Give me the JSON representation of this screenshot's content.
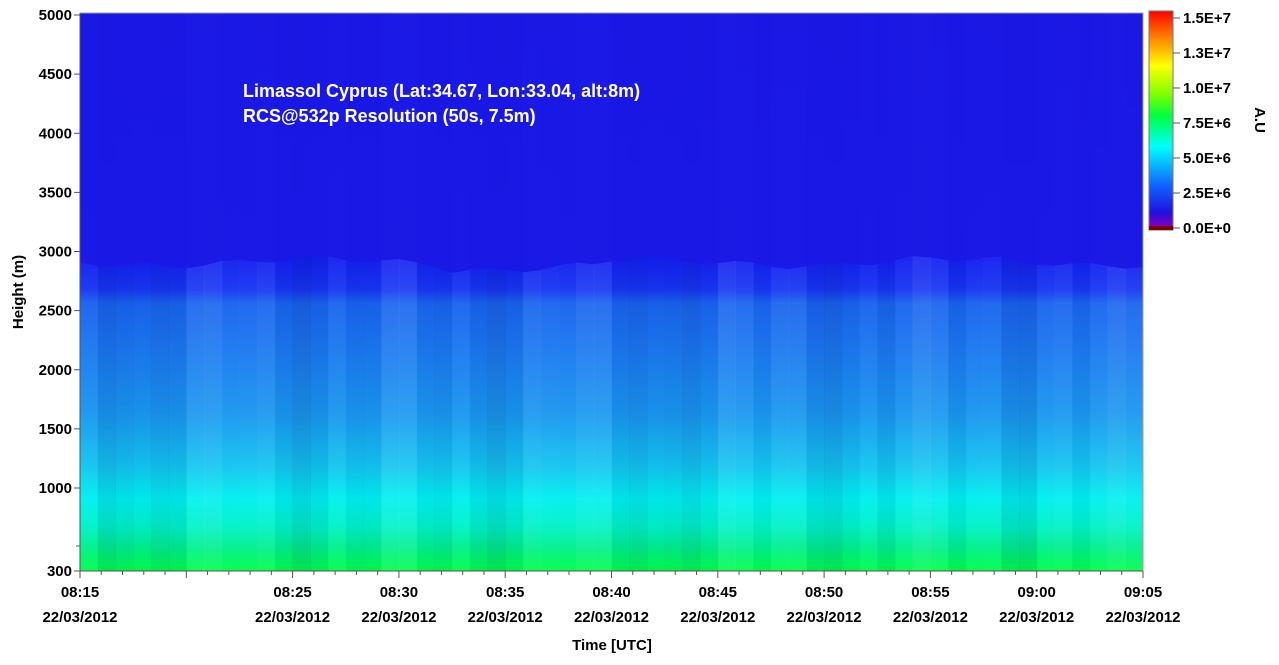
{
  "chart_data": {
    "type": "heatmap",
    "title": "",
    "annotations": [
      "Limassol Cyprus (Lat:34.67, Lon:33.04, alt:8m)",
      "RCS@532p Resolution (50s, 7.5m)"
    ],
    "xlabel": "Time [UTC]",
    "ylabel": "Height (m)",
    "x_date": "22/03/2012",
    "x_ticks": [
      "08:15",
      "08:25",
      "08:30",
      "08:35",
      "08:40",
      "08:45",
      "08:50",
      "08:55",
      "09:00",
      "09:05"
    ],
    "x_range": [
      "08:15",
      "09:05"
    ],
    "y_ticks": [
      300,
      1000,
      1500,
      2000,
      2500,
      3000,
      3500,
      4000,
      4500,
      5000
    ],
    "y_range": [
      300,
      5000
    ],
    "colorbar": {
      "label": "A.U",
      "ticks": [
        "1.5E+7",
        "1.3E+7",
        "1.0E+7",
        "7.5E+6",
        "5.0E+6",
        "2.5E+6",
        "0.0E+0"
      ],
      "values": [
        15000000,
        12500000,
        10000000,
        7500000,
        5000000,
        2500000,
        0
      ],
      "range": [
        0,
        15000000
      ]
    },
    "colors": {
      "free_troposphere": "#1a1ae6",
      "boundary_layer": "#1e78f0",
      "near_surface": "#00ff5a"
    }
  }
}
